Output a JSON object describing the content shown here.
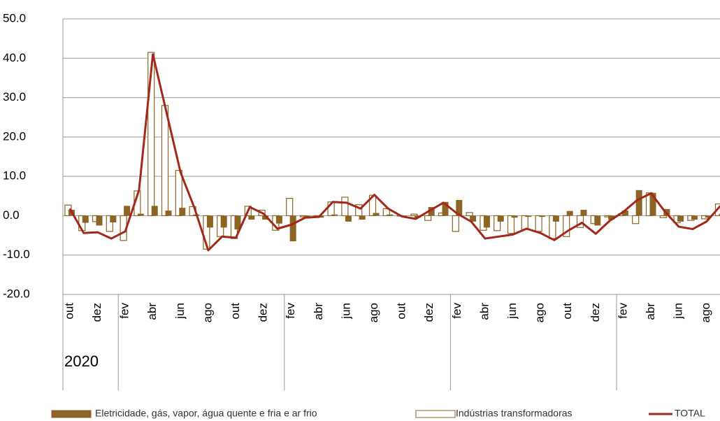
{
  "chart_data": {
    "type": "bar_line",
    "categories": [
      "out",
      null,
      "dez",
      null,
      "fev",
      null,
      "abr",
      null,
      "jun",
      null,
      "ago",
      null,
      "out",
      null,
      "dez",
      null,
      "fev",
      null,
      "abr",
      null,
      "jun",
      null,
      "ago",
      null,
      "out",
      null,
      "dez",
      null,
      "fev",
      null,
      "abr",
      null,
      "jun",
      null,
      "ago",
      null,
      "out",
      null,
      "dez",
      null,
      "fev",
      null,
      "abr",
      null,
      "jun",
      null,
      "ago",
      null
    ],
    "groups": [
      {
        "label": "2020",
        "start": 0
      },
      {
        "label": null,
        "start": 4
      },
      {
        "label": null,
        "start": 16
      },
      {
        "label": null,
        "start": 28
      },
      {
        "label": null,
        "start": 40
      }
    ],
    "series": [
      {
        "name": "Eletricidade, gás, vapor, água quente e fria e ar frio",
        "kind": "filled-bar",
        "color": "#8c6424",
        "values": [
          1.5,
          -1.8,
          -2.5,
          -1.7,
          2.5,
          0.5,
          2.5,
          1.3,
          2.0,
          0.3,
          -3.0,
          -3.0,
          -3.5,
          -1.0,
          -1.0,
          -2.0,
          -6.5,
          -0.5,
          -0.5,
          0.3,
          -1.5,
          -1.0,
          0.7,
          0.3,
          -0.3,
          -0.5,
          2.2,
          3.5,
          4.0,
          -1.5,
          -3.0,
          -1.5,
          -0.5,
          -0.3,
          -0.3,
          -1.5,
          1.2,
          1.5,
          -2.5,
          -1.0,
          1.3,
          6.5,
          5.8,
          1.7,
          -1.5,
          -1.0,
          -0.5,
          0.5
        ]
      },
      {
        "name": "Indústrias transformadoras",
        "kind": "hollow-bar",
        "color": "#8c6424",
        "values": [
          2.7,
          -3.8,
          -1.5,
          -4.0,
          -6.3,
          6.3,
          41.5,
          28.0,
          11.5,
          2.3,
          -8.5,
          -5.3,
          -5.8,
          2.4,
          1.4,
          -3.7,
          4.4,
          -0.3,
          -0.3,
          3.5,
          4.7,
          2.8,
          5.2,
          1.8,
          0.0,
          0.4,
          -1.2,
          0.7,
          -4.0,
          0.8,
          -3.7,
          -3.8,
          -4.5,
          -3.5,
          -4.0,
          -5.8,
          -5.3,
          -3.0,
          -2.0,
          -0.3,
          0.5,
          -2.0,
          5.8,
          -0.5,
          -1.8,
          -1.2,
          -0.8,
          3.0
        ]
      },
      {
        "name": "TOTAL",
        "kind": "line",
        "color": "#a3281c",
        "values": [
          1.8,
          -4.4,
          -4.2,
          -5.8,
          -4.0,
          6.5,
          41.0,
          26.0,
          11.0,
          2.0,
          -8.8,
          -5.3,
          -5.6,
          2.2,
          0.5,
          -3.3,
          -2.3,
          -0.5,
          -0.3,
          3.5,
          3.3,
          1.8,
          5.3,
          1.8,
          -0.2,
          -0.8,
          1.3,
          3.3,
          0.5,
          -1.5,
          -5.8,
          -5.3,
          -4.8,
          -3.3,
          -4.4,
          -6.2,
          -3.8,
          -1.8,
          -4.6,
          -1.3,
          1.0,
          4.0,
          5.7,
          1.0,
          -2.8,
          -3.4,
          -1.5,
          2.5
        ]
      }
    ],
    "ylim": [
      -20,
      50
    ],
    "yticks": [
      {
        "value": -20,
        "label": "-20.0"
      },
      {
        "value": -10,
        "label": "-10.0"
      },
      {
        "value": 0,
        "label": "0.0"
      },
      {
        "value": 10,
        "label": "10.0"
      },
      {
        "value": 20,
        "label": "20.0"
      },
      {
        "value": 30,
        "label": "30.0"
      },
      {
        "value": 40,
        "label": "40.0"
      },
      {
        "value": 50,
        "label": "50.0"
      }
    ],
    "grid": true,
    "legend": "bottom"
  }
}
